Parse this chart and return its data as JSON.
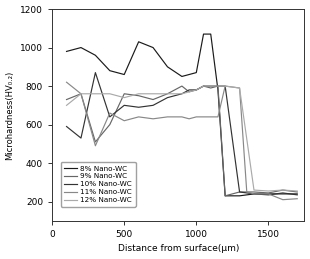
{
  "title": "",
  "xlabel": "Distance from surface(μm)",
  "ylabel": "Microhardness(HV₀.₂)",
  "xlim": [
    0,
    1750
  ],
  "ylim": [
    100,
    1200
  ],
  "yticks": [
    200,
    400,
    600,
    800,
    1000,
    1200
  ],
  "xticks": [
    0,
    500,
    1000,
    1500
  ],
  "series": [
    {
      "label": "8% Nano-WC",
      "color": "#1a1a1a",
      "x": [
        100,
        200,
        300,
        400,
        500,
        600,
        700,
        800,
        900,
        950,
        1000,
        1050,
        1100,
        1150,
        1200,
        1300,
        1400,
        1500,
        1600,
        1700
      ],
      "y": [
        980,
        1000,
        960,
        880,
        860,
        1030,
        1000,
        900,
        850,
        860,
        870,
        1070,
        1070,
        780,
        230,
        230,
        240,
        240,
        240,
        240
      ]
    },
    {
      "label": "9% Nano-WC",
      "color": "#666666",
      "x": [
        100,
        200,
        300,
        400,
        500,
        600,
        700,
        800,
        900,
        950,
        1000,
        1050,
        1100,
        1150,
        1200,
        1300,
        1400,
        1500,
        1600,
        1700
      ],
      "y": [
        730,
        760,
        510,
        600,
        760,
        750,
        730,
        760,
        800,
        770,
        780,
        800,
        790,
        800,
        230,
        250,
        250,
        245,
        260,
        250
      ]
    },
    {
      "label": "10% Nano-WC",
      "color": "#333333",
      "x": [
        100,
        200,
        300,
        400,
        500,
        600,
        700,
        800,
        900,
        950,
        1000,
        1050,
        1100,
        1150,
        1200,
        1300,
        1400,
        1500,
        1600,
        1700
      ],
      "y": [
        590,
        530,
        870,
        640,
        700,
        690,
        700,
        740,
        760,
        780,
        780,
        800,
        800,
        800,
        800,
        250,
        240,
        235,
        245,
        235
      ]
    },
    {
      "label": "11% Nano-WC",
      "color": "#888888",
      "x": [
        100,
        200,
        300,
        400,
        500,
        600,
        700,
        800,
        900,
        950,
        1000,
        1050,
        1100,
        1150,
        1200,
        1300,
        1350,
        1400,
        1500,
        1600,
        1700
      ],
      "y": [
        820,
        760,
        490,
        660,
        620,
        640,
        630,
        640,
        640,
        630,
        640,
        640,
        640,
        640,
        800,
        790,
        250,
        240,
        240,
        210,
        215
      ]
    },
    {
      "label": "12% Nano-WC",
      "color": "#aaaaaa",
      "x": [
        100,
        200,
        300,
        400,
        500,
        600,
        700,
        800,
        900,
        950,
        1000,
        1050,
        1100,
        1150,
        1200,
        1300,
        1400,
        1500,
        1600,
        1700
      ],
      "y": [
        700,
        760,
        760,
        760,
        740,
        760,
        760,
        760,
        760,
        770,
        780,
        800,
        800,
        800,
        800,
        790,
        260,
        255,
        260,
        255
      ]
    }
  ],
  "figsize": [
    3.1,
    2.59
  ],
  "dpi": 100,
  "bg_color": "#ffffff"
}
